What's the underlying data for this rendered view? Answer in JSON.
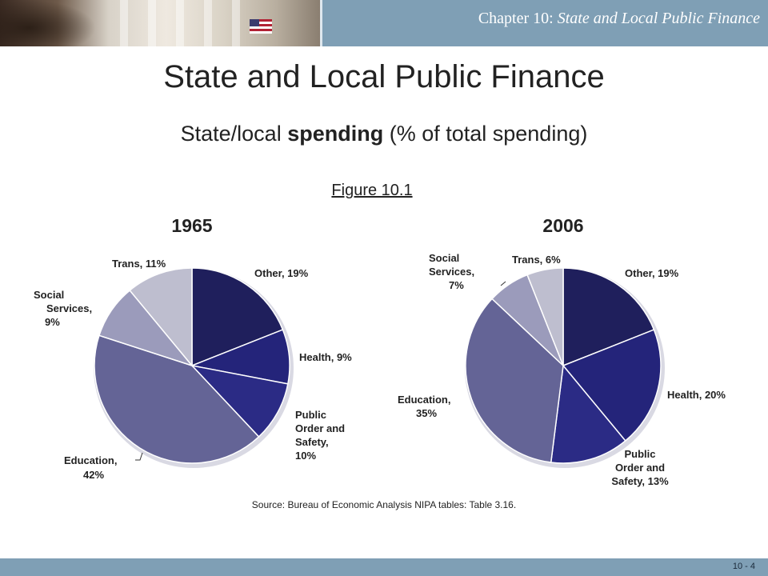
{
  "header": {
    "chapter_prefix": "Chapter 10:",
    "chapter_title": "State and Local Public Finance"
  },
  "title": "State and Local Public Finance",
  "subtitle_prefix": "State/local ",
  "subtitle_bold": "spending",
  "subtitle_suffix": " (% of total spending)",
  "figure_label": "Figure 10.1",
  "source": "Source:  Bureau of Economic Analysis NIPA tables:  Table 3.16.",
  "page_number": "10 - 4",
  "colors": {
    "Other": "#1f1f5c",
    "Health": "#24247a",
    "Public Order and Safety": "#2b2b85",
    "Education": "#646496",
    "Social Services": "#9b9bbb",
    "Trans": "#bebecf"
  },
  "chart_data": [
    {
      "type": "pie",
      "title": "1965",
      "categories": [
        "Other",
        "Health",
        "Public Order and Safety",
        "Education",
        "Social Services",
        "Trans"
      ],
      "values": [
        19,
        9,
        10,
        42,
        9,
        11
      ],
      "labels": [
        [
          "Other, 19%"
        ],
        [
          "Health, 9%"
        ],
        [
          "Public",
          "Order and",
          "Safety,",
          "10%"
        ],
        [
          "Education,",
          "42%"
        ],
        [
          "Social",
          "Services,",
          "9%"
        ],
        [
          "Trans, 11%"
        ]
      ]
    },
    {
      "type": "pie",
      "title": "2006",
      "categories": [
        "Other",
        "Health",
        "Public Order and Safety",
        "Education",
        "Social Services",
        "Trans"
      ],
      "values": [
        19,
        20,
        13,
        35,
        7,
        6
      ],
      "labels": [
        [
          "Other, 19%"
        ],
        [
          "Health, 20%"
        ],
        [
          "Public",
          "Order and",
          "Safety, 13%"
        ],
        [
          "Education,",
          "35%"
        ],
        [
          "Social",
          "Services,",
          "7%"
        ],
        [
          "Trans, 6%"
        ]
      ]
    }
  ]
}
